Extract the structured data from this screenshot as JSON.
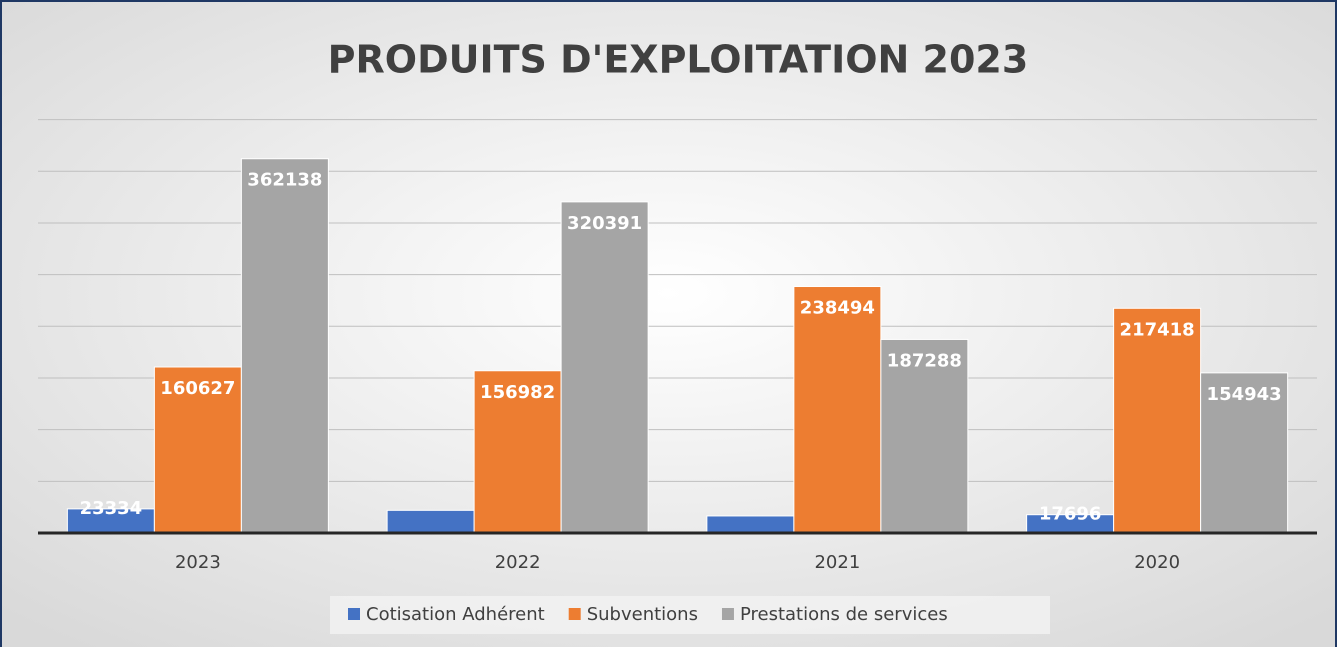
{
  "chart_data": {
    "type": "bar",
    "title": "PRODUITS D'EXPLOITATION 2023",
    "categories": [
      "2023",
      "2022",
      "2021",
      "2020"
    ],
    "series": [
      {
        "name": "Cotisation Adhérent",
        "color": "#4472c4",
        "values": [
          23334,
          21933,
          16500,
          17696
        ],
        "value_labels": [
          "23334",
          null,
          null,
          "17696"
        ]
      },
      {
        "name": "Subventions",
        "color": "#ed7d31",
        "values": [
          160627,
          156982,
          238494,
          217418
        ],
        "value_labels": [
          "160627",
          "156982",
          "238494",
          "217418"
        ]
      },
      {
        "name": "Prestations de services",
        "color": "#a5a5a5",
        "values": [
          362138,
          320391,
          187288,
          154943
        ],
        "value_labels": [
          "362138",
          "320391",
          "187288",
          "154943"
        ]
      }
    ],
    "ylim": [
      0,
      400000
    ],
    "yticks": [
      0,
      50000,
      100000,
      150000,
      200000,
      250000,
      300000,
      350000,
      400000
    ],
    "grid": true,
    "legend": "bottom"
  }
}
